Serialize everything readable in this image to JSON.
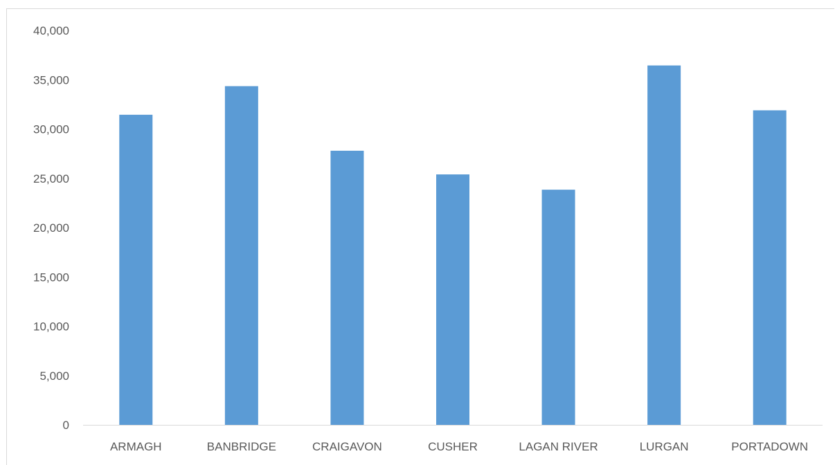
{
  "chart_data": {
    "type": "bar",
    "title": "",
    "xlabel": "",
    "ylabel": "",
    "categories": [
      "ARMAGH",
      "BANBRIDGE",
      "CRAIGAVON",
      "CUSHER",
      "LAGAN RIVER",
      "LURGAN",
      "PORTADOWN"
    ],
    "values": [
      31450,
      34350,
      27800,
      25400,
      23850,
      36450,
      31900
    ],
    "ylim": [
      0,
      40000
    ],
    "yticks": [
      "0",
      "5,000",
      "10,000",
      "15,000",
      "20,000",
      "25,000",
      "30,000",
      "35,000",
      "40,000"
    ],
    "ytick_values": [
      0,
      5000,
      10000,
      15000,
      20000,
      25000,
      30000,
      35000,
      40000
    ],
    "grid": false,
    "legend": "none",
    "bar_color": "#5b9bd5",
    "axis_color": "#d9d9d9"
  }
}
